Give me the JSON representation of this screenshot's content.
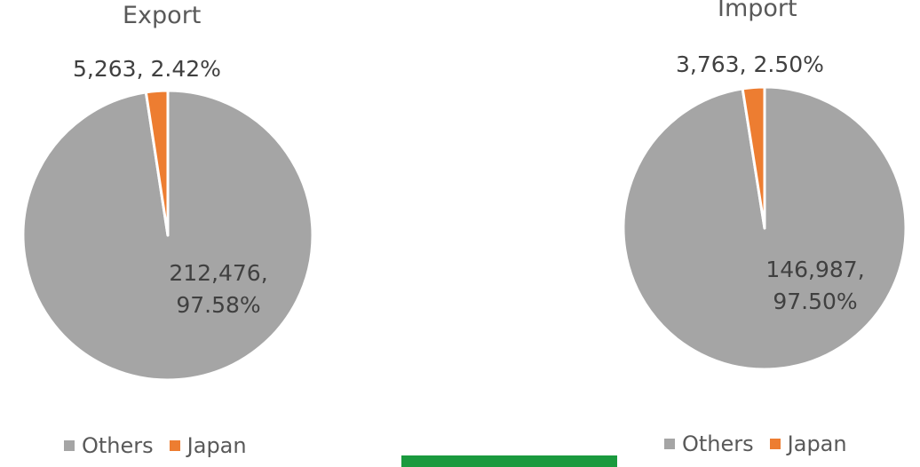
{
  "colors": {
    "others": "#a5a5a5",
    "japan": "#ed7d31",
    "slice_border": "#ffffff",
    "bar": "#1a9a3e"
  },
  "chart_data": [
    {
      "type": "pie",
      "title": "Export",
      "slices": [
        {
          "name": "Others",
          "value": 212476,
          "value_label": "212,476,",
          "percent_label": "97.58%"
        },
        {
          "name": "Japan",
          "value": 5263,
          "value_label": "5,263,",
          "percent_label": "2.42%"
        }
      ],
      "legend": {
        "position": "bottom",
        "entries": [
          "Others",
          "Japan"
        ]
      }
    },
    {
      "type": "pie",
      "title": "Import",
      "slices": [
        {
          "name": "Others",
          "value": 146987,
          "value_label": "146,987,",
          "percent_label": "97.50%"
        },
        {
          "name": "Japan",
          "value": 3763,
          "value_label": "3,763,",
          "percent_label": "2.50%"
        }
      ],
      "legend": {
        "position": "bottom",
        "entries": [
          "Others",
          "Japan"
        ]
      }
    }
  ]
}
